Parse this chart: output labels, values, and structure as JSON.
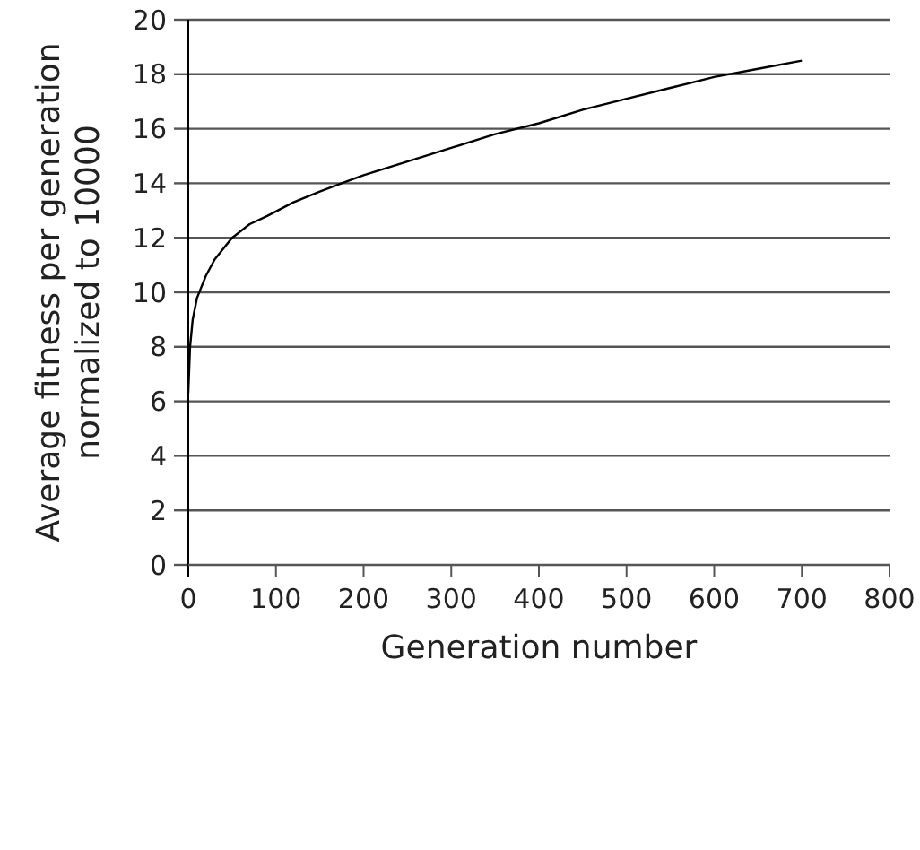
{
  "chart_data": {
    "type": "line",
    "xlabel": "Generation number",
    "ylabel": "Average fitness per generation\nnormalized to 10000",
    "x": [
      0,
      2,
      5,
      10,
      20,
      30,
      40,
      50,
      70,
      90,
      120,
      150,
      175,
      200,
      250,
      300,
      350,
      400,
      450,
      500,
      550,
      600,
      650,
      700
    ],
    "series": [
      {
        "color": "#000000",
        "values": [
          6.3,
          8.0,
          9.0,
          9.8,
          10.6,
          11.2,
          11.6,
          12.0,
          12.5,
          12.8,
          13.3,
          13.7,
          14.0,
          14.3,
          14.8,
          15.3,
          15.8,
          16.2,
          16.7,
          17.1,
          17.5,
          17.9,
          18.2,
          18.5
        ]
      }
    ],
    "xlim": [
      0,
      800
    ],
    "xticks": [
      0,
      100,
      200,
      300,
      400,
      500,
      600,
      700,
      800
    ],
    "ylim": [
      0,
      20
    ],
    "yticks": [
      0,
      2,
      4,
      6,
      8,
      10,
      12,
      14,
      16,
      18,
      20
    ],
    "grid": "y"
  }
}
